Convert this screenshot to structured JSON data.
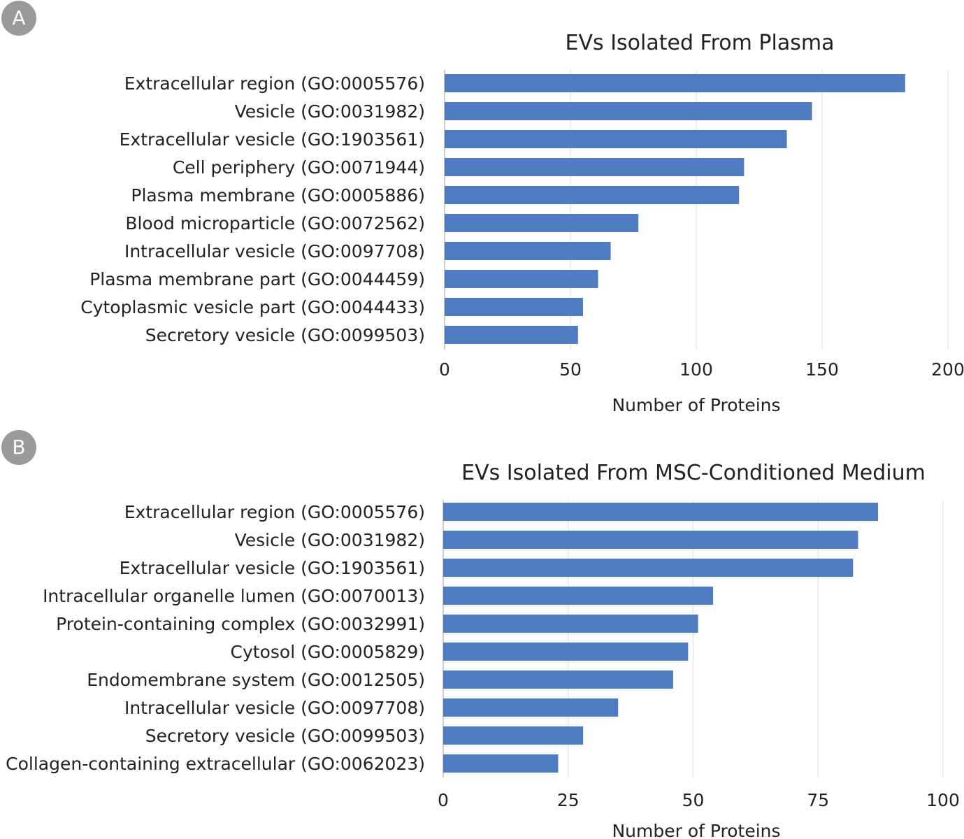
{
  "chart_data": [
    {
      "type": "bar",
      "orientation": "horizontal",
      "panel_label": "A",
      "title": "EVs Isolated From Plasma",
      "xlabel": "Number of Proteins",
      "ylabel": "",
      "xlim": [
        0,
        200
      ],
      "xticks": [
        "0",
        "50",
        "100",
        "150",
        "200"
      ],
      "grid": true,
      "bar_color": "#4f7bc1",
      "categories": [
        "Extracellular region (GO:0005576)",
        "Vesicle (GO:0031982)",
        "Extracellular vesicle (GO:1903561)",
        "Cell periphery (GO:0071944)",
        "Plasma membrane (GO:0005886)",
        "Blood microparticle (GO:0072562)",
        "Intracellular vesicle (GO:0097708)",
        "Plasma membrane part (GO:0044459)",
        "Cytoplasmic vesicle part (GO:0044433)",
        "Secretory vesicle (GO:0099503)"
      ],
      "values": [
        183,
        146,
        136,
        119,
        117,
        77,
        66,
        61,
        55,
        53
      ]
    },
    {
      "type": "bar",
      "orientation": "horizontal",
      "panel_label": "B",
      "title": "EVs Isolated From MSC-Conditioned Medium",
      "xlabel": "Number of Proteins",
      "ylabel": "",
      "xlim": [
        0,
        100
      ],
      "xticks": [
        "0",
        "25",
        "50",
        "75",
        "100"
      ],
      "grid": true,
      "bar_color": "#4f7bc1",
      "categories": [
        "Extracellular region (GO:0005576)",
        "Vesicle (GO:0031982)",
        "Extracellular vesicle (GO:1903561)",
        "Intracellular organelle lumen (GO:0070013)",
        "Protein-containing complex (GO:0032991)",
        "Cytosol (GO:0005829)",
        "Endomembrane system (GO:0012505)",
        "Intracellular vesicle (GO:0097708)",
        "Secretory vesicle (GO:0099503)",
        "Collagen-containing extracellular (GO:0062023)"
      ],
      "values": [
        87,
        83,
        82,
        54,
        51,
        49,
        46,
        35,
        28,
        23
      ]
    }
  ]
}
